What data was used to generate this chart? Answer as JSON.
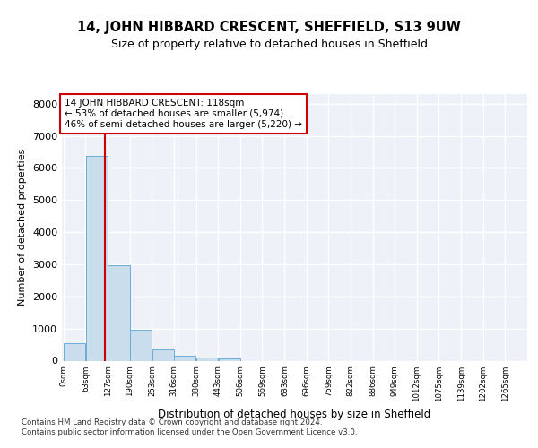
{
  "title1": "14, JOHN HIBBARD CRESCENT, SHEFFIELD, S13 9UW",
  "title2": "Size of property relative to detached houses in Sheffield",
  "xlabel": "Distribution of detached houses by size in Sheffield",
  "ylabel": "Number of detached properties",
  "bar_color": "#c9dded",
  "bar_edge_color": "#6aaed6",
  "vline_color": "#cc0000",
  "annotation_text": "14 JOHN HIBBARD CRESCENT: 118sqm\n← 53% of detached houses are smaller (5,974)\n46% of semi-detached houses are larger (5,220) →",
  "annotation_box_color": "#cc0000",
  "bins": [
    0,
    63,
    127,
    190,
    253,
    316,
    380,
    443,
    506,
    569,
    633,
    696,
    759,
    822,
    886,
    949,
    1012,
    1075,
    1139,
    1202,
    1265
  ],
  "bar_heights": [
    550,
    6380,
    2960,
    960,
    340,
    165,
    110,
    75,
    0,
    0,
    0,
    0,
    0,
    0,
    0,
    0,
    0,
    0,
    0,
    0
  ],
  "ylim": [
    0,
    8300
  ],
  "yticks": [
    0,
    1000,
    2000,
    3000,
    4000,
    5000,
    6000,
    7000,
    8000
  ],
  "footer_text": "Contains HM Land Registry data © Crown copyright and database right 2024.\nContains public sector information licensed under the Open Government Licence v3.0.",
  "background_color": "#eef2f8"
}
